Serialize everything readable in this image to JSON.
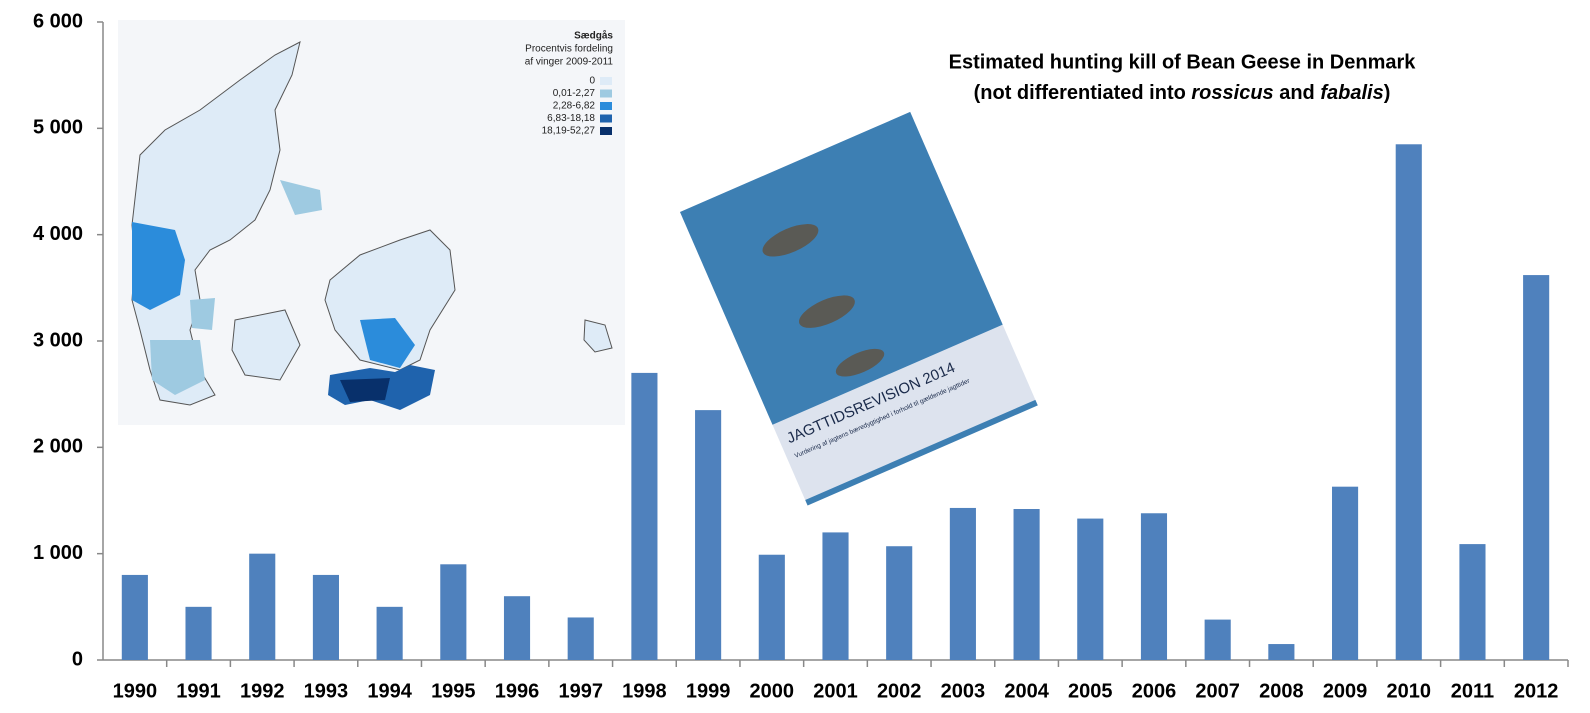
{
  "chart_data": {
    "type": "bar",
    "title": "Estimated hunting kill of Bean Geese in Denmark",
    "subtitle": [
      "(not differentiated into ",
      "rossicus",
      " and ",
      "fabalis",
      ")"
    ],
    "categories": [
      "1990",
      "1991",
      "1992",
      "1993",
      "1994",
      "1995",
      "1996",
      "1997",
      "1998",
      "1999",
      "2000",
      "2001",
      "2002",
      "2003",
      "2004",
      "2005",
      "2006",
      "2007",
      "2008",
      "2009",
      "2010",
      "2011",
      "2012"
    ],
    "values": [
      800,
      500,
      1000,
      800,
      500,
      900,
      600,
      400,
      2700,
      2350,
      990,
      1200,
      1070,
      1430,
      1420,
      1330,
      1380,
      380,
      150,
      1630,
      4850,
      1090,
      3620
    ],
    "color": "#4f81bd",
    "ylim": [
      0,
      6000
    ],
    "yticks": [
      0,
      {
        "value": 1000,
        "label": "1 000"
      },
      {
        "value": 2000,
        "label": "2 000"
      },
      {
        "value": 3000,
        "label": "3 000"
      },
      {
        "value": 4000,
        "label": "4 000"
      },
      {
        "value": 5000,
        "label": "5 000"
      },
      {
        "value": 6000,
        "label": "6 000"
      }
    ],
    "grid": false
  },
  "map_inset": {
    "title": [
      "Sædgås",
      "Procentvis fordeling",
      "af vinger 2009-2011"
    ],
    "legend": [
      {
        "label": "0",
        "color": "#deebf7"
      },
      {
        "label": "0,01-2,27",
        "color": "#9ecae1"
      },
      {
        "label": "2,28-6,82",
        "color": "#2b8cdb"
      },
      {
        "label": "6,83-18,18",
        "color": "#1f63ad"
      },
      {
        "label": "18,19-52,27",
        "color": "#08306b"
      }
    ]
  },
  "cover_inset": {
    "title": "JAGTTIDSREVISION 2014",
    "subtitle": "Vurdering af jagtens bæredygtighed i forhold til gældende jagttider"
  }
}
